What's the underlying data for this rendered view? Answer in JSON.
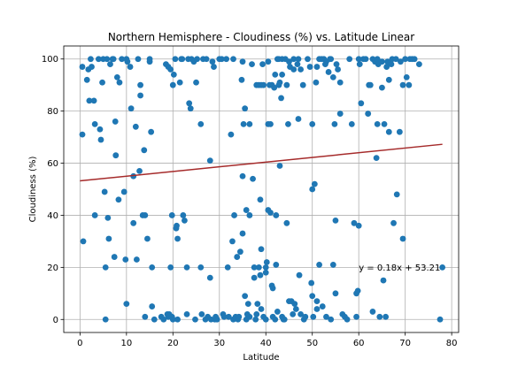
{
  "chart_data": {
    "type": "scatter",
    "title": "Northern Hemisphere - Cloudiness (%) vs. Latitude Linear",
    "xlabel": "Latitude",
    "ylabel": "Cloudiness (%)",
    "xlim": [
      -3.5,
      81.5
    ],
    "ylim": [
      -5,
      105
    ],
    "xticks": [
      0,
      10,
      20,
      30,
      40,
      50,
      60,
      70,
      80
    ],
    "yticks": [
      0,
      20,
      40,
      60,
      80,
      100
    ],
    "grid": true,
    "colors": {
      "points": "#1f77b4",
      "regression": "#a52a2a"
    },
    "regression": {
      "slope": 0.18,
      "intercept": 53.21,
      "x_range": [
        0,
        78
      ],
      "equation": "y = 0.18x + 53.21"
    },
    "annotation": {
      "text": "y = 0.18x + 53.21",
      "x": 60,
      "y": 20
    },
    "points": [
      [
        0.5,
        97
      ],
      [
        0.5,
        71
      ],
      [
        0.7,
        30
      ],
      [
        1.5,
        92
      ],
      [
        1.8,
        96
      ],
      [
        2,
        84
      ],
      [
        2.3,
        100
      ],
      [
        2.5,
        97
      ],
      [
        3,
        84
      ],
      [
        3.2,
        75
      ],
      [
        3.2,
        40
      ],
      [
        4,
        100
      ],
      [
        4.3,
        73
      ],
      [
        4.5,
        69
      ],
      [
        4.8,
        91
      ],
      [
        5,
        100
      ],
      [
        5.3,
        49
      ],
      [
        5.5,
        20
      ],
      [
        5.5,
        0
      ],
      [
        5.8,
        100
      ],
      [
        6,
        39
      ],
      [
        6.2,
        31
      ],
      [
        6.5,
        98
      ],
      [
        7,
        100
      ],
      [
        7.2,
        100
      ],
      [
        7.4,
        24
      ],
      [
        7.6,
        76
      ],
      [
        7.7,
        63
      ],
      [
        8,
        93
      ],
      [
        8.3,
        46
      ],
      [
        8.5,
        91
      ],
      [
        9,
        100
      ],
      [
        9.5,
        49
      ],
      [
        9.8,
        23
      ],
      [
        10,
        6
      ],
      [
        10,
        100
      ],
      [
        10.2,
        99
      ],
      [
        10.8,
        97
      ],
      [
        11,
        81
      ],
      [
        11.5,
        55
      ],
      [
        11.5,
        37
      ],
      [
        12,
        74
      ],
      [
        12.2,
        23
      ],
      [
        12.5,
        100
      ],
      [
        12.8,
        57
      ],
      [
        13,
        90
      ],
      [
        13,
        86
      ],
      [
        13.5,
        40
      ],
      [
        13.8,
        65
      ],
      [
        14,
        40
      ],
      [
        14,
        1
      ],
      [
        14.5,
        31
      ],
      [
        15,
        100
      ],
      [
        15,
        99
      ],
      [
        15.3,
        72
      ],
      [
        15.5,
        20
      ],
      [
        15.5,
        5
      ],
      [
        16,
        0
      ],
      [
        17.5,
        1
      ],
      [
        18,
        0
      ],
      [
        18.5,
        98
      ],
      [
        18.8,
        2
      ],
      [
        19,
        97
      ],
      [
        19,
        1
      ],
      [
        19.2,
        2
      ],
      [
        19.5,
        96
      ],
      [
        19.5,
        20
      ],
      [
        19.8,
        40
      ],
      [
        19.8,
        1
      ],
      [
        20,
        90
      ],
      [
        20,
        0
      ],
      [
        20.2,
        94
      ],
      [
        20.5,
        100
      ],
      [
        20.7,
        35
      ],
      [
        20.8,
        36
      ],
      [
        21,
        31
      ],
      [
        21,
        0
      ],
      [
        21.5,
        91
      ],
      [
        21.8,
        100
      ],
      [
        22,
        100
      ],
      [
        22.2,
        40
      ],
      [
        22.5,
        38
      ],
      [
        23,
        20
      ],
      [
        23,
        2
      ],
      [
        23.3,
        100
      ],
      [
        23.5,
        83
      ],
      [
        23.8,
        81
      ],
      [
        24,
        100
      ],
      [
        24.5,
        99
      ],
      [
        24.8,
        0
      ],
      [
        25,
        91
      ],
      [
        25.2,
        100
      ],
      [
        26,
        20
      ],
      [
        26,
        75
      ],
      [
        26.2,
        2
      ],
      [
        26.5,
        100
      ],
      [
        27,
        0
      ],
      [
        27.2,
        100
      ],
      [
        27.5,
        1
      ],
      [
        28,
        16
      ],
      [
        28,
        61
      ],
      [
        28.2,
        0
      ],
      [
        28.5,
        99
      ],
      [
        28.8,
        97
      ],
      [
        29,
        0
      ],
      [
        29.2,
        1
      ],
      [
        29.5,
        0
      ],
      [
        30,
        100
      ],
      [
        30.5,
        100
      ],
      [
        30.8,
        2
      ],
      [
        31,
        1
      ],
      [
        31.5,
        100
      ],
      [
        31.8,
        20
      ],
      [
        32,
        1
      ],
      [
        32.5,
        71
      ],
      [
        32.8,
        30
      ],
      [
        33,
        0
      ],
      [
        33,
        100
      ],
      [
        33.2,
        40
      ],
      [
        33.5,
        1
      ],
      [
        33.8,
        24
      ],
      [
        34,
        0
      ],
      [
        34.2,
        1
      ],
      [
        34.5,
        26
      ],
      [
        34.8,
        92
      ],
      [
        35,
        55
      ],
      [
        35,
        33
      ],
      [
        35,
        99
      ],
      [
        35.2,
        75
      ],
      [
        35.5,
        9
      ],
      [
        35.5,
        81
      ],
      [
        35.8,
        42
      ],
      [
        35.8,
        0
      ],
      [
        36,
        2
      ],
      [
        36.2,
        6
      ],
      [
        36.5,
        40
      ],
      [
        36.5,
        75
      ],
      [
        36.5,
        1
      ],
      [
        37,
        98
      ],
      [
        37.2,
        54
      ],
      [
        37.5,
        16
      ],
      [
        37.5,
        20
      ],
      [
        37.8,
        0
      ],
      [
        38,
        2
      ],
      [
        38,
        90
      ],
      [
        38.2,
        6
      ],
      [
        38.5,
        90
      ],
      [
        38.5,
        20
      ],
      [
        38.8,
        46
      ],
      [
        38.8,
        17
      ],
      [
        39,
        27
      ],
      [
        39,
        4
      ],
      [
        39,
        90
      ],
      [
        39.3,
        98
      ],
      [
        39.5,
        90
      ],
      [
        39.5,
        1
      ],
      [
        40,
        20
      ],
      [
        40,
        0
      ],
      [
        40,
        18
      ],
      [
        40.2,
        22
      ],
      [
        40.5,
        42
      ],
      [
        40.5,
        75
      ],
      [
        40.5,
        99
      ],
      [
        40.8,
        90
      ],
      [
        41,
        75
      ],
      [
        41,
        41
      ],
      [
        41.3,
        90
      ],
      [
        41.3,
        13
      ],
      [
        41.5,
        12
      ],
      [
        41.5,
        1
      ],
      [
        41.8,
        89
      ],
      [
        42,
        94
      ],
      [
        42,
        0
      ],
      [
        42.2,
        40
      ],
      [
        42.2,
        21
      ],
      [
        42.5,
        100
      ],
      [
        42.5,
        3
      ],
      [
        42.8,
        90
      ],
      [
        42.8,
        100
      ],
      [
        43,
        59
      ],
      [
        43,
        91
      ],
      [
        43.3,
        85
      ],
      [
        43.5,
        94
      ],
      [
        43.5,
        1
      ],
      [
        43.5,
        100
      ],
      [
        43.8,
        0
      ],
      [
        44,
        0
      ],
      [
        44.2,
        100
      ],
      [
        44.5,
        37
      ],
      [
        44.5,
        90
      ],
      [
        44.8,
        75
      ],
      [
        45,
        99
      ],
      [
        45,
        7
      ],
      [
        45.2,
        97
      ],
      [
        45.5,
        7
      ],
      [
        45.8,
        2
      ],
      [
        46,
        96
      ],
      [
        46,
        100
      ],
      [
        46.2,
        6
      ],
      [
        46.5,
        4
      ],
      [
        46.8,
        98
      ],
      [
        47,
        100
      ],
      [
        47,
        77
      ],
      [
        47.2,
        17
      ],
      [
        47.5,
        96
      ],
      [
        47.5,
        2
      ],
      [
        48,
        90
      ],
      [
        48.2,
        0
      ],
      [
        48.5,
        1
      ],
      [
        49,
        100
      ],
      [
        49.5,
        97
      ],
      [
        49.8,
        14
      ],
      [
        50,
        9
      ],
      [
        50,
        50
      ],
      [
        50,
        75
      ],
      [
        50.2,
        1
      ],
      [
        50.5,
        52
      ],
      [
        50.8,
        91
      ],
      [
        51,
        7
      ],
      [
        51,
        4
      ],
      [
        51,
        97
      ],
      [
        51.5,
        100
      ],
      [
        51.5,
        21
      ],
      [
        52,
        100
      ],
      [
        52.2,
        5
      ],
      [
        52.5,
        100
      ],
      [
        52.8,
        98
      ],
      [
        53,
        99
      ],
      [
        53,
        1
      ],
      [
        53.5,
        95
      ],
      [
        53.8,
        100
      ],
      [
        54,
        100
      ],
      [
        54,
        0
      ],
      [
        54.5,
        93
      ],
      [
        54.5,
        21
      ],
      [
        54.8,
        75
      ],
      [
        55,
        38
      ],
      [
        55,
        10
      ],
      [
        55.2,
        98
      ],
      [
        55.5,
        96
      ],
      [
        56,
        79
      ],
      [
        56,
        91
      ],
      [
        56.5,
        2
      ],
      [
        57,
        1
      ],
      [
        57.5,
        0
      ],
      [
        58,
        100
      ],
      [
        58.5,
        75
      ],
      [
        59,
        37
      ],
      [
        59.5,
        1
      ],
      [
        59.5,
        10
      ],
      [
        59.8,
        11
      ],
      [
        60,
        36
      ],
      [
        60,
        100
      ],
      [
        60.2,
        98
      ],
      [
        60.5,
        83
      ],
      [
        61,
        100
      ],
      [
        61.5,
        100
      ],
      [
        62,
        79
      ],
      [
        62.2,
        90
      ],
      [
        62.5,
        90
      ],
      [
        63,
        100
      ],
      [
        63,
        3
      ],
      [
        63.5,
        99
      ],
      [
        63.8,
        62
      ],
      [
        64,
        75
      ],
      [
        64,
        100
      ],
      [
        64.2,
        98
      ],
      [
        64.5,
        1
      ],
      [
        65,
        89
      ],
      [
        65,
        99
      ],
      [
        65.3,
        15
      ],
      [
        65.5,
        75
      ],
      [
        65.8,
        1
      ],
      [
        66,
        97
      ],
      [
        66.2,
        99
      ],
      [
        66.5,
        92
      ],
      [
        66.5,
        72
      ],
      [
        67,
        98
      ],
      [
        67.2,
        100
      ],
      [
        67.5,
        37
      ],
      [
        68,
        100
      ],
      [
        68.2,
        48
      ],
      [
        68.8,
        72
      ],
      [
        69,
        99
      ],
      [
        69.5,
        90
      ],
      [
        69.5,
        31
      ],
      [
        70,
        100
      ],
      [
        70.3,
        93
      ],
      [
        70.8,
        90
      ],
      [
        71,
        100
      ],
      [
        71.5,
        100
      ],
      [
        72,
        100
      ],
      [
        73,
        98
      ],
      [
        77.5,
        0
      ],
      [
        78,
        20
      ]
    ]
  }
}
